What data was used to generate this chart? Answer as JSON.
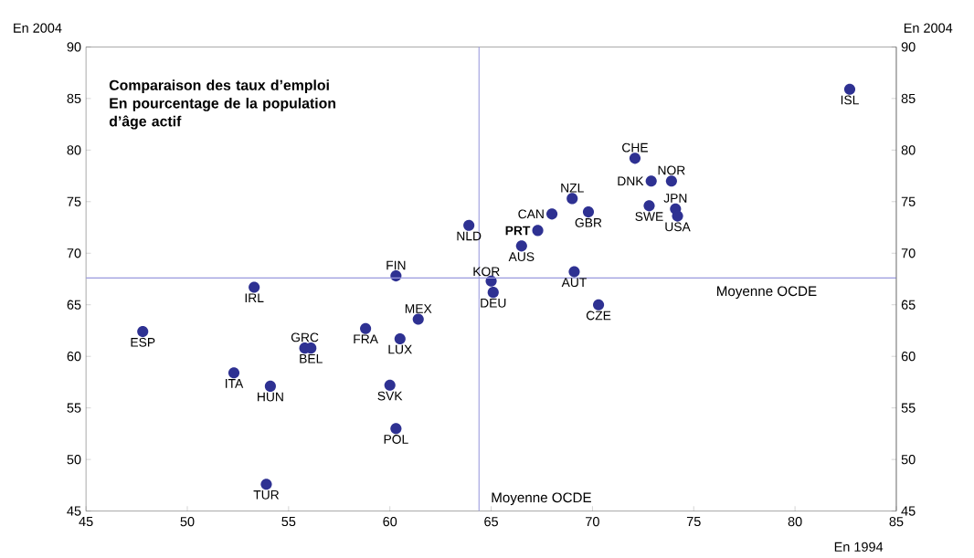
{
  "chart_data": {
    "type": "scatter",
    "title": "Comparaison des taux d’emploi",
    "subtitle": "En pourcentage de la population d’âge actif",
    "xlabel": "En 1994",
    "ylabel": "En 2004",
    "y2label": "En 2004",
    "xlim": [
      45,
      85
    ],
    "xticks": [
      45,
      50,
      55,
      60,
      65,
      70,
      75,
      80,
      85
    ],
    "ylim": [
      45,
      90
    ],
    "yticks": [
      45,
      50,
      55,
      60,
      65,
      70,
      75,
      80,
      85,
      90
    ],
    "y2lim": [
      45,
      90
    ],
    "y2ticks": [
      45,
      50,
      55,
      60,
      65,
      70,
      75,
      80,
      85,
      90
    ],
    "marker": "circle",
    "grid": false,
    "series": [
      {
        "color": "#2e3192",
        "x": [
          47.8,
          53.3,
          52.3,
          54.1,
          55.8,
          56.1,
          58.8,
          60.3,
          61.4,
          60.5,
          60.0,
          60.3,
          53.9,
          65.0,
          65.1,
          63.9,
          68.0,
          67.3,
          66.5,
          69.0,
          69.8,
          69.1,
          70.3,
          72.1,
          72.9,
          73.9,
          72.8,
          74.1,
          74.2,
          82.7
        ],
        "values": [
          62.4,
          66.7,
          58.4,
          57.1,
          60.8,
          60.8,
          62.7,
          67.8,
          63.6,
          61.7,
          57.2,
          53.0,
          47.6,
          67.3,
          66.2,
          72.7,
          73.8,
          72.2,
          70.7,
          75.3,
          74.0,
          68.2,
          65.0,
          79.2,
          77.0,
          77.0,
          74.6,
          74.3,
          73.6,
          85.9
        ]
      }
    ],
    "ref_lines": [
      {
        "axis": "y",
        "value": 67.6,
        "label": "Moyenne OCDE",
        "color": "#9999dd"
      },
      {
        "axis": "x",
        "value": 64.4,
        "label": "Moyenne OCDE",
        "color": "#9999dd"
      }
    ],
    "annotations": [
      {
        "text": "ESP",
        "x": 47.8,
        "y": 62.4
      },
      {
        "text": "IRL",
        "x": 53.3,
        "y": 66.7
      },
      {
        "text": "ITA",
        "x": 52.3,
        "y": 58.4
      },
      {
        "text": "HUN",
        "x": 54.1,
        "y": 57.1
      },
      {
        "text": "GRC",
        "x": 55.8,
        "y": 60.8
      },
      {
        "text": "BEL",
        "x": 56.1,
        "y": 60.8
      },
      {
        "text": "FRA",
        "x": 58.8,
        "y": 62.7
      },
      {
        "text": "FIN",
        "x": 60.3,
        "y": 67.8
      },
      {
        "text": "MEX",
        "x": 61.4,
        "y": 63.6
      },
      {
        "text": "LUX",
        "x": 60.5,
        "y": 61.7
      },
      {
        "text": "SVK",
        "x": 60.0,
        "y": 57.2
      },
      {
        "text": "POL",
        "x": 60.3,
        "y": 53.0
      },
      {
        "text": "TUR",
        "x": 53.9,
        "y": 47.6
      },
      {
        "text": "KOR",
        "x": 65.0,
        "y": 67.3
      },
      {
        "text": "DEU",
        "x": 65.1,
        "y": 66.2
      },
      {
        "text": "NLD",
        "x": 63.9,
        "y": 72.7
      },
      {
        "text": "CAN",
        "x": 68.0,
        "y": 73.8
      },
      {
        "text": "**PRT**",
        "x": 67.3,
        "y": 72.2
      },
      {
        "text": "AUS",
        "x": 66.5,
        "y": 70.7
      },
      {
        "text": "NZL",
        "x": 69.0,
        "y": 75.3
      },
      {
        "text": "GBR",
        "x": 69.8,
        "y": 74.0
      },
      {
        "text": "AUT",
        "x": 69.1,
        "y": 68.2
      },
      {
        "text": "CZE",
        "x": 70.3,
        "y": 65.0
      },
      {
        "text": "CHE",
        "x": 72.1,
        "y": 79.2
      },
      {
        "text": "DNK",
        "x": 72.9,
        "y": 77.0
      },
      {
        "text": "NOR",
        "x": 73.9,
        "y": 77.0
      },
      {
        "text": "SWE",
        "x": 72.8,
        "y": 74.6
      },
      {
        "text": "JPN",
        "x": 74.1,
        "y": 74.3
      },
      {
        "text": "USA",
        "x": 74.2,
        "y": 73.6
      },
      {
        "text": "ISL",
        "x": 82.7,
        "y": 85.9
      }
    ]
  }
}
